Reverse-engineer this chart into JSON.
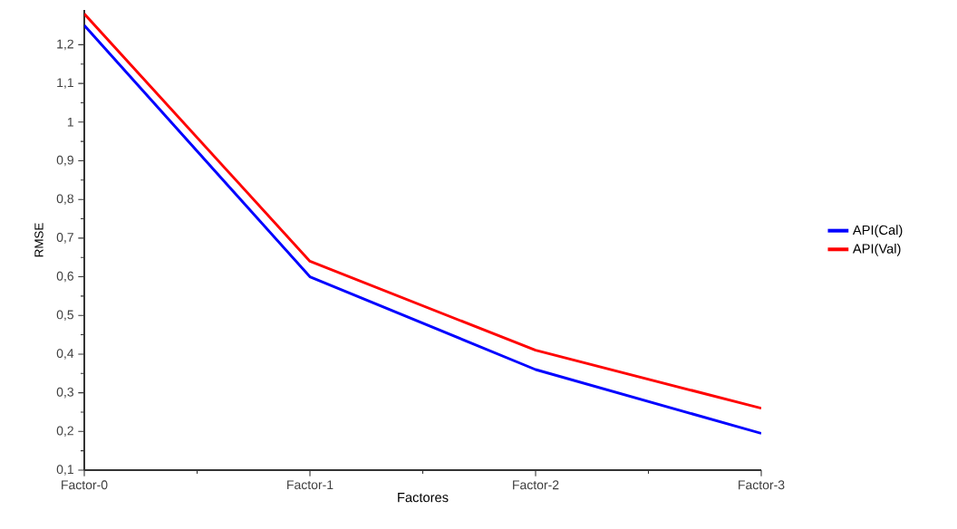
{
  "chart_data": {
    "type": "line",
    "xlabel": "Factores",
    "ylabel": "RMSE",
    "categories": [
      "Factor-0",
      "Factor-1",
      "Factor-2",
      "Factor-3"
    ],
    "series": [
      {
        "name": "API(Cal)",
        "color": "#0000ff",
        "values": [
          1.25,
          0.6,
          0.36,
          0.195
        ]
      },
      {
        "name": "API(Val)",
        "color": "#ff0000",
        "values": [
          1.28,
          0.64,
          0.41,
          0.26
        ]
      }
    ],
    "ylim": [
      0.1,
      1.29
    ],
    "yticks": [
      {
        "value": 0.1,
        "label": "0,1"
      },
      {
        "value": 0.2,
        "label": "0,2"
      },
      {
        "value": 0.3,
        "label": "0,3"
      },
      {
        "value": 0.4,
        "label": "0,4"
      },
      {
        "value": 0.5,
        "label": "0,5"
      },
      {
        "value": 0.6,
        "label": "0,6"
      },
      {
        "value": 0.7,
        "label": "0,7"
      },
      {
        "value": 0.8,
        "label": "0,8"
      },
      {
        "value": 0.9,
        "label": "0,9"
      },
      {
        "value": 1,
        "label": "1"
      },
      {
        "value": 1.1,
        "label": "1,1"
      },
      {
        "value": 1.2,
        "label": "1,2"
      }
    ],
    "legend": "right",
    "grid": false,
    "marker": "none",
    "line_style": "solid"
  }
}
